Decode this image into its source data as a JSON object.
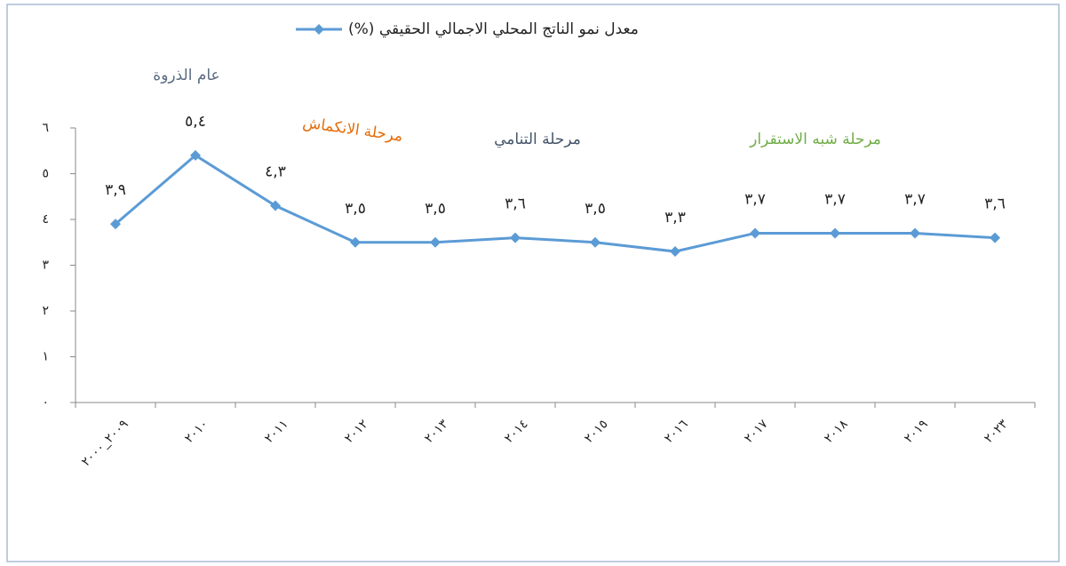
{
  "chart_data": {
    "type": "line",
    "legend_label": "معدل نمو الناتج المحلي الاجمالي الحقيقي (%)",
    "categories": [
      "٢٠٠٩_٢٠٠٠",
      "٢٠١٠",
      "٢٠١١",
      "٢٠١٢",
      "٢٠١٣",
      "٢٠١٤",
      "٢٠١٥",
      "٢٠١٦",
      "٢٠١٧",
      "٢٠١٨",
      "٢٠١٩",
      "٢٠٢٣"
    ],
    "series": [
      {
        "name": "معدل نمو الناتج المحلي الاجمالي الحقيقي (%)",
        "color": "#5b9bd5",
        "values": [
          3.9,
          5.4,
          4.3,
          3.5,
          3.5,
          3.6,
          3.5,
          3.3,
          3.7,
          3.7,
          3.7,
          3.6
        ],
        "value_labels": [
          "٣,٩",
          "٥,٤",
          "٤,٣",
          "٣,٥",
          "٣,٥",
          "٣,٦",
          "٣,٥",
          "٣,٣",
          "٣,٧",
          "٣,٧",
          "٣,٧",
          "٣,٦"
        ]
      }
    ],
    "ylim": [
      0,
      6
    ],
    "yticks": [
      {
        "value": 0,
        "label": "٠"
      },
      {
        "value": 1,
        "label": "١"
      },
      {
        "value": 2,
        "label": "٢"
      },
      {
        "value": 3,
        "label": "٣"
      },
      {
        "value": 4,
        "label": "٤"
      },
      {
        "value": 5,
        "label": "٥"
      },
      {
        "value": 6,
        "label": "٦"
      }
    ],
    "grid": false,
    "annotations": [
      {
        "text": "عام الذروة",
        "color": "#5a6b80"
      },
      {
        "text": "مرحلة الانكماش",
        "color": "#e46c0a"
      },
      {
        "text": "مرحلة التنامي",
        "color": "#44546a"
      },
      {
        "text": "مرحلة شبه الاستقرار",
        "color": "#70ad47"
      }
    ]
  }
}
